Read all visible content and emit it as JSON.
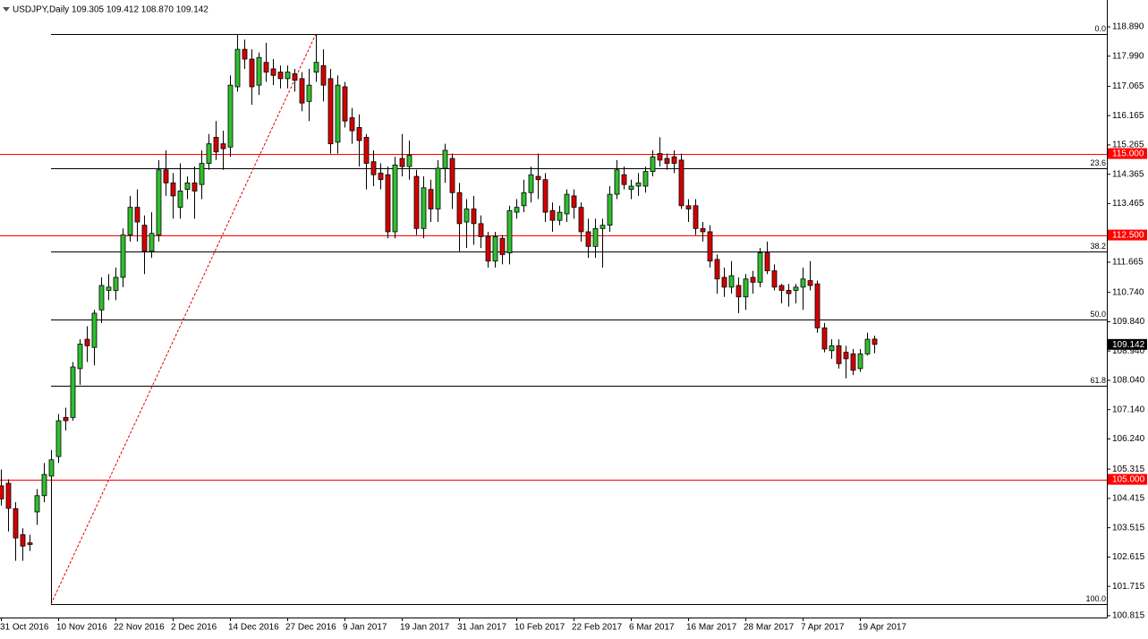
{
  "chart_data": {
    "type": "candlestick",
    "title": "USDJPY,Daily  109.305 109.412 108.870 109.142",
    "up_color": "#2fbf2f",
    "down_color": "#d40000",
    "ylim": [
      100.758,
      119.714
    ],
    "yticks": [
      {
        "value": 118.89,
        "label": "118.890"
      },
      {
        "value": 117.99,
        "label": "117.990"
      },
      117.065,
      116.165,
      115.265,
      114.365,
      113.465,
      111.665,
      {
        "value": 110.74,
        "label": "110.740"
      },
      {
        "value": 109.84,
        "label": "109.840"
      },
      {
        "value": 108.94,
        "label": "108.940"
      },
      {
        "value": 108.04,
        "label": "108.040"
      },
      {
        "value": 107.14,
        "label": "107.140"
      },
      {
        "value": 106.24,
        "label": "106.240"
      },
      105.315,
      104.415,
      103.515,
      102.615,
      101.715,
      100.815
    ],
    "levels": [
      {
        "value": 115,
        "label": "115.000",
        "color": "#ff0000"
      },
      {
        "value": 112.5,
        "label": "112.500",
        "color": "#ff0000"
      },
      {
        "value": 105,
        "label": "105.000",
        "color": "#ff0000"
      }
    ],
    "fib_levels": [
      {
        "label": "0.0",
        "value": 118.67
      },
      {
        "label": "23.6",
        "value": 114.54
      },
      {
        "label": "38.2",
        "value": 111.99
      },
      {
        "label": "50.0",
        "value": 109.92
      },
      {
        "label": "61.8",
        "value": 107.86
      },
      {
        "label": "100.0",
        "value": 101.17
      }
    ],
    "last_price": 109.142,
    "categories": [
      "31 Oct 2016",
      null,
      null,
      null,
      null,
      null,
      null,
      null,
      "10 Nov 2016",
      null,
      null,
      null,
      null,
      null,
      null,
      null,
      "22 Nov 2016",
      null,
      null,
      null,
      null,
      null,
      null,
      null,
      "2 Dec 2016",
      null,
      null,
      null,
      null,
      null,
      null,
      null,
      "14 Dec 2016",
      null,
      null,
      null,
      null,
      null,
      null,
      null,
      "27 Dec 2016",
      null,
      null,
      null,
      null,
      null,
      null,
      null,
      "9 Jan 2017",
      null,
      null,
      null,
      null,
      null,
      null,
      null,
      "19 Jan 2017",
      null,
      null,
      null,
      null,
      null,
      null,
      null,
      "31 Jan 2017",
      null,
      null,
      null,
      null,
      null,
      null,
      null,
      "10 Feb 2017",
      null,
      null,
      null,
      null,
      null,
      null,
      null,
      "22 Feb 2017",
      null,
      null,
      null,
      null,
      null,
      null,
      null,
      "6 Mar 2017",
      null,
      null,
      null,
      null,
      null,
      null,
      null,
      "16 Mar 2017",
      null,
      null,
      null,
      null,
      null,
      null,
      null,
      "28 Mar 2017",
      null,
      null,
      null,
      null,
      null,
      null,
      null,
      "7 Apr 2017",
      null,
      null,
      null,
      null,
      null,
      null,
      null,
      "19 Apr 2017",
      null,
      null
    ],
    "open": [
      104.8,
      104.88,
      104.1,
      103.3,
      103.05,
      104.0,
      104.5,
      105.1,
      105.7,
      106.9,
      106.9,
      108.4,
      109.3,
      109.05,
      110.2,
      110.8,
      110.8,
      111.2,
      112.5,
      113.35,
      112.8,
      112.0,
      112.5,
      114.5,
      114.1,
      113.35,
      113.9,
      114.1,
      114.05,
      114.7,
      115.5,
      115.3,
      115.2,
      117.05,
      118.2,
      117.9,
      117.1,
      117.8,
      117.6,
      117.5,
      117.3,
      117.45,
      117.3,
      116.6,
      117.5,
      117.7,
      117.3,
      115.35,
      117.05,
      116.1,
      115.8,
      115.5,
      114.75,
      114.4,
      114.35,
      112.6,
      114.85,
      114.6,
      114.3,
      112.7,
      113.9,
      113.3,
      114.55,
      114.85,
      113.8,
      112.9,
      113.3,
      112.85,
      112.45,
      111.7,
      112.4,
      111.95,
      113.2,
      113.4,
      113.8,
      114.3,
      114.2,
      113.25,
      112.95,
      113.15,
      113.7,
      113.35,
      112.6,
      112.15,
      112.7,
      112.8,
      113.75,
      114.35,
      113.9,
      114.0,
      114.0,
      114.45,
      115.0,
      114.85,
      114.9,
      114.8,
      113.4,
      113.4,
      112.7,
      112.6,
      111.75,
      111.2,
      110.9,
      110.95,
      110.6,
      111.2,
      111.05,
      111.95,
      111.4,
      110.95,
      110.8,
      110.8,
      110.9,
      111.1,
      111.0,
      109.65,
      108.95,
      109.1,
      108.9,
      108.85,
      108.4,
      108.85,
      109.305
    ],
    "high": [
      105.3,
      105.0,
      104.3,
      103.5,
      103.3,
      104.7,
      105.5,
      105.9,
      107.0,
      107.2,
      108.6,
      109.3,
      109.7,
      110.2,
      111.2,
      111.3,
      111.5,
      112.7,
      113.7,
      113.9,
      113.1,
      113.2,
      114.8,
      115.1,
      114.4,
      114.7,
      114.3,
      114.6,
      115.1,
      115.6,
      116.0,
      115.7,
      117.4,
      118.66,
      118.5,
      118.2,
      118.1,
      118.4,
      117.9,
      117.7,
      117.7,
      117.6,
      117.5,
      117.6,
      118.66,
      118.2,
      117.6,
      117.4,
      117.2,
      116.4,
      116.2,
      115.6,
      115.1,
      114.7,
      114.6,
      114.9,
      115.6,
      115.4,
      114.5,
      114.3,
      114.2,
      114.8,
      115.3,
      115.0,
      114.1,
      113.6,
      113.7,
      113.1,
      112.6,
      112.6,
      112.5,
      113.4,
      113.6,
      114.2,
      114.6,
      115.0,
      114.4,
      113.5,
      113.4,
      113.9,
      113.9,
      113.5,
      113.0,
      113.0,
      113.0,
      114.0,
      114.8,
      114.6,
      114.2,
      114.4,
      114.6,
      115.1,
      115.5,
      115.0,
      115.1,
      115.0,
      113.6,
      113.6,
      112.9,
      112.8,
      111.9,
      111.5,
      111.7,
      111.2,
      111.3,
      111.4,
      112.1,
      112.3,
      111.6,
      111.0,
      111.0,
      111.0,
      111.5,
      111.7,
      111.1,
      109.8,
      109.3,
      109.3,
      109.1,
      109.0,
      109.0,
      109.5,
      109.412
    ],
    "low": [
      104.2,
      103.4,
      102.5,
      102.5,
      102.8,
      103.6,
      104.3,
      101.2,
      105.5,
      106.5,
      106.8,
      107.9,
      108.6,
      108.5,
      109.8,
      110.5,
      110.5,
      110.9,
      112.3,
      112.3,
      111.3,
      111.8,
      112.3,
      113.7,
      113.0,
      113.0,
      113.6,
      113.0,
      113.6,
      114.5,
      114.8,
      114.5,
      114.9,
      116.9,
      117.6,
      116.5,
      116.8,
      117.2,
      117.1,
      117.0,
      117.0,
      116.9,
      116.3,
      116.0,
      117.2,
      116.6,
      115.0,
      115.0,
      115.8,
      115.3,
      114.6,
      113.9,
      114.0,
      113.9,
      112.4,
      112.4,
      114.3,
      114.2,
      112.5,
      112.4,
      112.9,
      112.9,
      114.1,
      113.3,
      112.0,
      112.1,
      112.2,
      112.1,
      111.5,
      111.5,
      111.6,
      111.6,
      113.0,
      113.2,
      113.5,
      113.6,
      112.9,
      112.6,
      112.8,
      112.9,
      113.0,
      112.3,
      111.8,
      111.8,
      111.5,
      112.6,
      113.6,
      113.9,
      113.6,
      113.7,
      113.8,
      114.3,
      114.6,
      114.5,
      114.4,
      113.3,
      112.9,
      112.5,
      112.3,
      111.5,
      110.7,
      110.6,
      110.7,
      110.1,
      110.2,
      110.7,
      110.9,
      111.3,
      110.8,
      110.4,
      110.3,
      110.4,
      110.2,
      110.8,
      109.5,
      108.9,
      108.7,
      108.4,
      108.1,
      108.2,
      108.3,
      108.8,
      108.87
    ],
    "close": [
      104.4,
      104.11,
      103.2,
      102.95,
      103.0,
      104.5,
      105.15,
      105.6,
      106.8,
      106.8,
      108.45,
      109.15,
      109.1,
      110.1,
      110.95,
      110.9,
      111.2,
      112.5,
      113.35,
      112.9,
      112.0,
      112.55,
      114.5,
      114.1,
      113.7,
      113.85,
      114.1,
      113.85,
      114.7,
      115.3,
      115.05,
      115.15,
      117.1,
      118.2,
      117.9,
      117.05,
      117.95,
      117.5,
      117.4,
      117.3,
      117.5,
      117.25,
      116.55,
      117.1,
      117.8,
      117.1,
      115.3,
      117.1,
      116.0,
      115.7,
      115.4,
      114.7,
      114.35,
      114.2,
      112.6,
      114.65,
      114.6,
      114.95,
      112.7,
      113.95,
      113.3,
      114.55,
      115.1,
      113.8,
      112.85,
      113.3,
      112.85,
      112.45,
      111.7,
      112.45,
      111.9,
      113.25,
      113.35,
      113.8,
      114.35,
      114.2,
      113.2,
      112.95,
      113.2,
      113.75,
      113.35,
      112.6,
      112.15,
      112.7,
      112.8,
      113.75,
      114.5,
      114.05,
      114.0,
      114.1,
      114.45,
      114.9,
      114.8,
      114.7,
      114.7,
      113.4,
      113.3,
      112.7,
      112.6,
      111.7,
      111.15,
      110.9,
      111.25,
      110.6,
      111.15,
      111.05,
      111.95,
      111.4,
      110.9,
      110.8,
      110.7,
      110.9,
      111.15,
      110.95,
      109.65,
      109.0,
      109.1,
      108.55,
      108.7,
      108.35,
      108.85,
      109.3,
      109.142
    ]
  }
}
